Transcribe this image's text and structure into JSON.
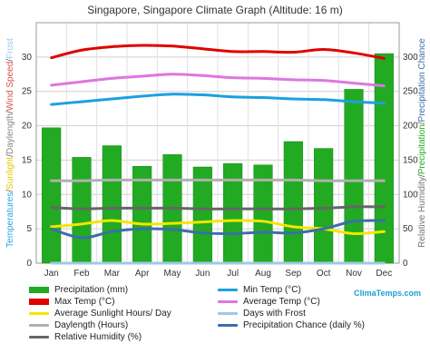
{
  "chart_data": {
    "type": "bar",
    "title": "Singapore, Singapore Climate Graph (Altitude: 16 m)",
    "categories": [
      "Jan",
      "Feb",
      "Mar",
      "Apr",
      "May",
      "Jun",
      "Jul",
      "Aug",
      "Sep",
      "Oct",
      "Nov",
      "Dec"
    ],
    "left_axis": {
      "label_parts": [
        {
          "text": "Temperatures",
          "color": "#2aa7e0"
        },
        {
          "text": "/",
          "color": "#555555"
        },
        {
          "text": "Sunlight",
          "color": "#e6c800"
        },
        {
          "text": "/",
          "color": "#555555"
        },
        {
          "text": "Daylength",
          "color": "#888888"
        },
        {
          "text": "/",
          "color": "#555555"
        },
        {
          "text": "Wind Speed",
          "color": "#d9534f"
        },
        {
          "text": "/",
          "color": "#555555"
        },
        {
          "text": "Frost",
          "color": "#9ec9e8"
        }
      ],
      "ylim": [
        0,
        35
      ],
      "ticks": [
        0,
        5,
        10,
        15,
        20,
        25,
        30
      ]
    },
    "right_axis": {
      "label_parts": [
        {
          "text": "Relative Humidity",
          "color": "#777777"
        },
        {
          "text": "/",
          "color": "#555555"
        },
        {
          "text": "Precipitation",
          "color": "#22aa22"
        },
        {
          "text": "/",
          "color": "#555555"
        },
        {
          "text": "Precipitation Chance",
          "color": "#3a6fa8"
        }
      ],
      "ylim": [
        0,
        350
      ],
      "ticks": [
        0,
        50,
        100,
        150,
        200,
        250,
        300
      ]
    },
    "grid": true,
    "series": [
      {
        "name": "Precipitation (mm)",
        "kind": "bar",
        "axis": "right",
        "color": "#22aa22",
        "values": [
          197,
          154,
          171,
          141,
          158,
          140,
          145,
          143,
          177,
          167,
          253,
          305
        ]
      },
      {
        "name": "Min Temp (°C)",
        "kind": "line",
        "axis": "left",
        "color": "#1ca0e0",
        "values": [
          23.1,
          23.5,
          23.9,
          24.3,
          24.6,
          24.5,
          24.2,
          24.1,
          23.9,
          23.8,
          23.5,
          23.3
        ]
      },
      {
        "name": "Max Temp (°C)",
        "kind": "line",
        "axis": "left",
        "color": "#e00000",
        "values": [
          29.9,
          31.0,
          31.5,
          31.7,
          31.6,
          31.2,
          30.8,
          30.8,
          30.7,
          31.1,
          30.6,
          29.8
        ]
      },
      {
        "name": "Average Temp (°C)",
        "kind": "line",
        "axis": "left",
        "color": "#dd77dd",
        "values": [
          25.9,
          26.4,
          26.9,
          27.2,
          27.5,
          27.3,
          27.0,
          26.9,
          26.7,
          26.6,
          26.2,
          25.8
        ]
      },
      {
        "name": "Average Sunlight Hours/ Day",
        "kind": "line",
        "axis": "left",
        "color": "#f5e600",
        "values": [
          5.3,
          5.7,
          6.2,
          5.7,
          5.8,
          6.0,
          6.2,
          6.1,
          5.3,
          5.0,
          4.3,
          4.6
        ]
      },
      {
        "name": "Days with Frost",
        "kind": "line",
        "axis": "left",
        "color": "#9ec9e8",
        "values": [
          0,
          0,
          0,
          0,
          0,
          0,
          0,
          0,
          0,
          0,
          0,
          0
        ]
      },
      {
        "name": "Daylength (Hours)",
        "kind": "line",
        "axis": "left",
        "color": "#b0b0b0",
        "values": [
          12.0,
          12.0,
          12.1,
          12.1,
          12.1,
          12.1,
          12.1,
          12.1,
          12.1,
          12.0,
          12.0,
          12.0
        ]
      },
      {
        "name": "Precipitation Chance (daily %)",
        "kind": "line",
        "axis": "right",
        "color": "#3a6fa8",
        "values": [
          50,
          37,
          46,
          50,
          49,
          44,
          43,
          45,
          44,
          50,
          61,
          62
        ]
      },
      {
        "name": "Relative Humidity (%)",
        "kind": "line",
        "axis": "right",
        "color": "#666666",
        "values": [
          81,
          79,
          80,
          80,
          80,
          79,
          79,
          79,
          79,
          80,
          82,
          82
        ]
      }
    ]
  },
  "legend_order": [
    {
      "series": 0,
      "style": "bar"
    },
    {
      "series": 1,
      "style": "line"
    },
    {
      "series": 2,
      "style": "bar"
    },
    {
      "series": 3,
      "style": "line"
    },
    {
      "series": 4,
      "style": "line"
    },
    {
      "series": 5,
      "style": "line"
    },
    {
      "series": 6,
      "style": "line"
    },
    {
      "series": 7,
      "style": "line"
    },
    {
      "series": 8,
      "style": "line"
    }
  ],
  "brand": "ClimaTemps.com"
}
